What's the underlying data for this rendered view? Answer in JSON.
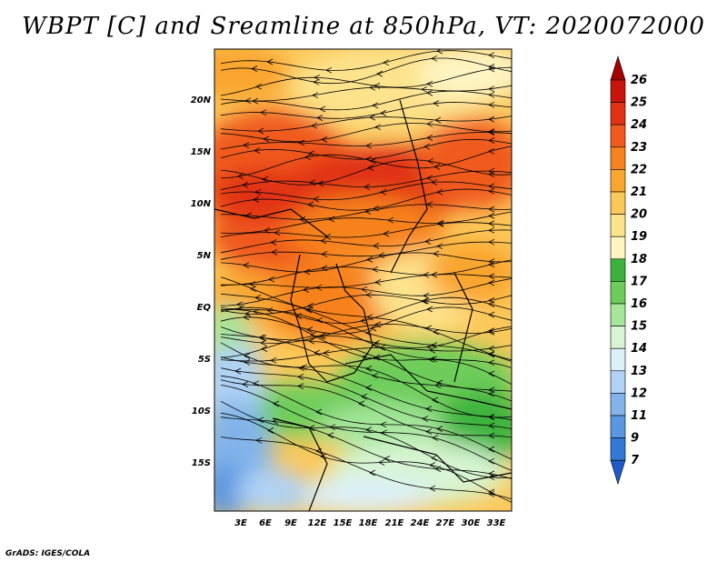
{
  "title": "WBPT [C] and Sreamline at 850hPa, VT: 2020072000",
  "credit": "GrADS: IGES/COLA",
  "lat_ticks": [
    "20N",
    "15N",
    "10N",
    "5N",
    "EQ",
    "5S",
    "10S",
    "15S"
  ],
  "lon_ticks": [
    "3E",
    "6E",
    "9E",
    "12E",
    "15E",
    "18E",
    "21E",
    "24E",
    "27E",
    "30E",
    "33E"
  ],
  "colorbar": {
    "labels": [
      "26",
      "25",
      "24",
      "23",
      "22",
      "21",
      "20",
      "19",
      "18",
      "17",
      "16",
      "15",
      "14",
      "13",
      "12",
      "11",
      "9",
      "7"
    ],
    "colors": [
      "#a50000",
      "#c8140a",
      "#e13214",
      "#f05a1e",
      "#f7821e",
      "#faa52d",
      "#fcc85a",
      "#fde38c",
      "#fef5c3",
      "#3cb43c",
      "#6ecd5a",
      "#a5e69b",
      "#d7f5d2",
      "#dcf0fa",
      "#afd2f5",
      "#82b4eb",
      "#5a96e1",
      "#3278d7",
      "#1e5ac8"
    ]
  }
}
